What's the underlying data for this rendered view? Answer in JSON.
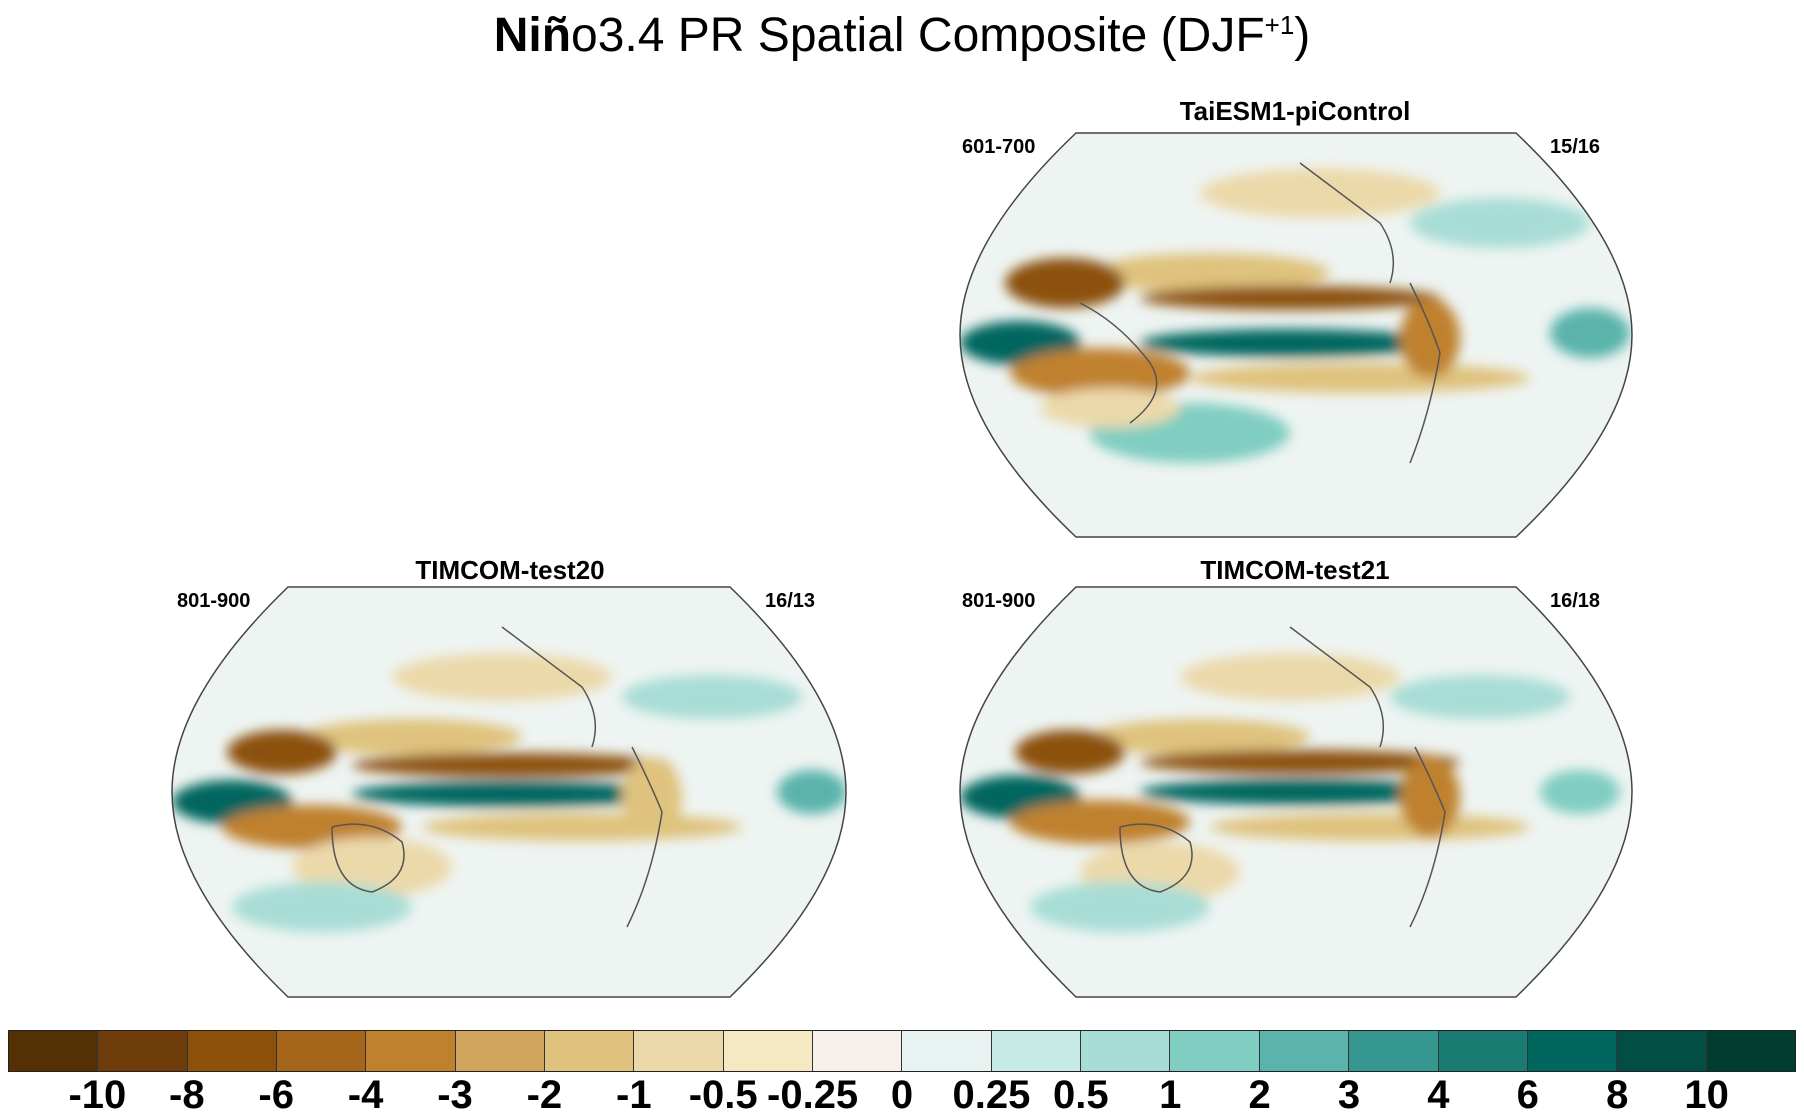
{
  "figure": {
    "title_bold": "Niñ",
    "title_rest": "o3.4 PR Spatial Composite (DJF",
    "title_sup": "+1",
    "title_close": ")"
  },
  "panels": [
    {
      "id": "taiesm",
      "title": "TaiESM1-piControl",
      "years": "601-700",
      "count": "15/16"
    },
    {
      "id": "test20",
      "title": "TIMCOM-test20",
      "years": "801-900",
      "count": "16/13"
    },
    {
      "id": "test21",
      "title": "TIMCOM-test21",
      "years": "801-900",
      "count": "16/18"
    }
  ],
  "colorbar": {
    "colors": [
      "#543005",
      "#6f3d0b",
      "#8c510a",
      "#a5661c",
      "#bf812d",
      "#d2a55e",
      "#dfc27d",
      "#ecd9aa",
      "#f6e8c3",
      "#f5f1ea",
      "#e8f2f1",
      "#c7eae5",
      "#a8ddd5",
      "#80cdc1",
      "#5ab4ac",
      "#35978f",
      "#1a7b72",
      "#01665e",
      "#024d44",
      "#003c30"
    ],
    "labels": [
      "-10",
      "-8",
      "-6",
      "-4",
      "-3",
      "-2",
      "-1",
      "-0.5",
      "-0.25",
      "0",
      "0.25",
      "0.5",
      "1",
      "2",
      "3",
      "4",
      "6",
      "8",
      "10"
    ]
  },
  "map_colors": {
    "ocean_neutral": "#eef4f2",
    "dry_strong": "#6f3d0b",
    "dry_mid": "#bf812d",
    "dry_light": "#ecd9aa",
    "wet_strong": "#01665e",
    "wet_mid": "#35978f",
    "wet_light": "#a8ddd5",
    "coast": "#555555"
  }
}
